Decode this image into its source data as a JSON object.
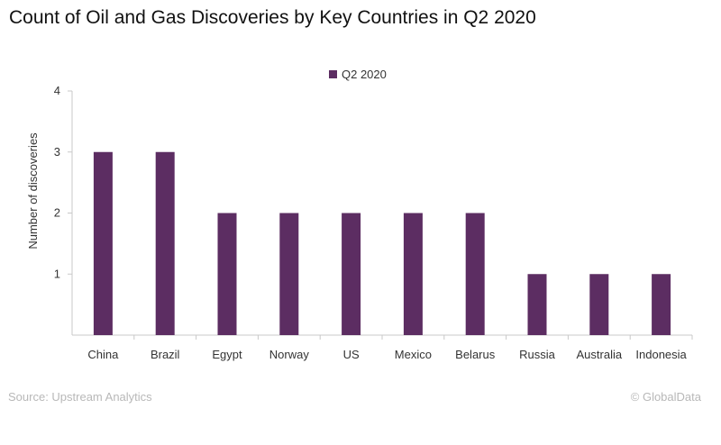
{
  "title": "Count of Oil and Gas Discoveries by Key Countries in Q2 2020",
  "source": "Source: Upstream Analytics",
  "credit": "© GlobalData",
  "chart_data": {
    "type": "bar",
    "title": "Count of Oil and Gas Discoveries by Key Countries in Q2 2020",
    "xlabel": "",
    "ylabel": "Number of discoveries",
    "categories": [
      "China",
      "Brazil",
      "Egypt",
      "Norway",
      "US",
      "Mexico",
      "Belarus",
      "Russia",
      "Australia",
      "Indonesia"
    ],
    "series": [
      {
        "name": "Q2 2020",
        "values": [
          3,
          3,
          2,
          2,
          2,
          2,
          2,
          1,
          1,
          1
        ],
        "color": "#5c2d62"
      }
    ],
    "ylim": [
      0,
      4
    ],
    "yticks": [
      1,
      2,
      3,
      4
    ],
    "grid": false,
    "legend": "top-center"
  }
}
